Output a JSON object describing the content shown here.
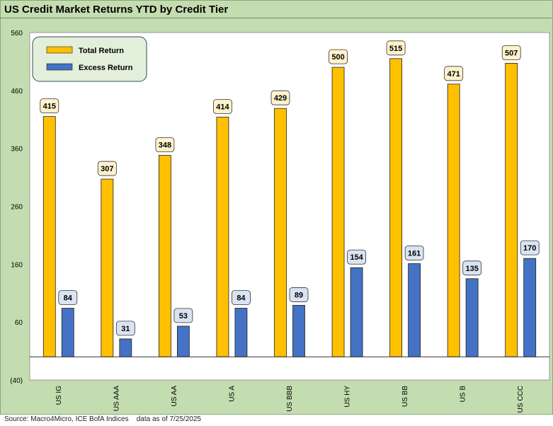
{
  "title": "US Credit Market Returns YTD by Credit Tier",
  "footer": {
    "source": "Source: Macro4Micro, ICE BofA Indices",
    "date_note": "data as of 7/25/2025"
  },
  "colors": {
    "total": "#ffc000",
    "excess": "#4472c4",
    "total_label_bg": "#fff2cc",
    "excess_label_bg": "#dae3f3",
    "frame_bg": "#c4ddb0"
  },
  "chart_data": {
    "type": "bar",
    "title": "US Credit Market Returns YTD by Credit Tier",
    "categories": [
      "US IG",
      "US AAA",
      "US AA",
      "US A",
      "US BBB",
      "US HY",
      "US BB",
      "US B",
      "US CCC"
    ],
    "series": [
      {
        "name": "Total Return",
        "values": [
          415,
          307,
          348,
          414,
          429,
          500,
          515,
          471,
          507
        ]
      },
      {
        "name": "Excess Return",
        "values": [
          84,
          31,
          53,
          84,
          89,
          154,
          161,
          135,
          170
        ]
      }
    ],
    "ylim": [
      -40,
      560
    ],
    "yticks": [
      -40,
      60,
      160,
      260,
      360,
      460,
      560
    ],
    "ytick_labels": [
      "(40)",
      "60",
      "160",
      "260",
      "360",
      "460",
      "560"
    ],
    "xlabel": "",
    "ylabel": "",
    "legend_position": "top-left",
    "grid": false
  }
}
